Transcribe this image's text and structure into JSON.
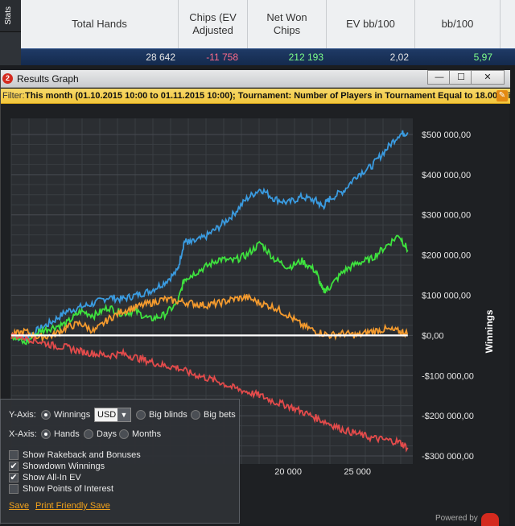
{
  "stats": {
    "tab_label": "Stats",
    "headers": [
      "Total Hands",
      "Chips (EV Adjusted",
      "Net Won Chips",
      "EV bb/100",
      "bb/100"
    ],
    "values": [
      "28 642",
      "-11 758",
      "212 193",
      "2,02",
      "5,97"
    ],
    "value_colors": [
      "#e6e6e6",
      "#ff6b8a",
      "#7dff8a",
      "#e6e6e6",
      "#7dff8a"
    ]
  },
  "window": {
    "title": "Results Graph",
    "icon_text": "2",
    "minimize_label": "—",
    "maximize_label": "☐",
    "close_label": "✕"
  },
  "filter": {
    "label": "Filter:",
    "text": "This month (01.10.2015 10:00 to 01.11.2015 10:00); Tournament: Number of Players in Tournament Equal to 18.00",
    "overflow": "Win"
  },
  "chart_data": {
    "type": "line",
    "ylabel": "Winnings",
    "xlabel": "",
    "xlim": [
      0,
      29000
    ],
    "ylim": [
      -320000,
      540000
    ],
    "y_ticks": [
      500000,
      400000,
      300000,
      200000,
      100000,
      0,
      -100000,
      -200000,
      -300000
    ],
    "y_tick_labels": [
      "$500 000,00",
      "$400 000,00",
      "$300 000,00",
      "$200 000,00",
      "$100 000,00",
      "$0,00",
      "-$100 000,00",
      "-$200 000,00",
      "-$300 000,00"
    ],
    "x_ticks": [
      20000,
      25000
    ],
    "x_tick_labels": [
      "20 000",
      "25 000"
    ],
    "grid": true,
    "series": [
      {
        "name": "",
        "color": "#3a9be0",
        "x": [
          0,
          1000,
          2000,
          3000,
          4000,
          5000,
          6000,
          7000,
          8000,
          9000,
          10000,
          11000,
          12000,
          12500,
          13000,
          14000,
          15000,
          16000,
          17000,
          18000,
          19000,
          20000,
          21000,
          22000,
          22500,
          23000,
          24000,
          25000,
          26000,
          27000,
          28000,
          28642
        ],
        "y": [
          0,
          -5000,
          15000,
          35000,
          60000,
          70000,
          80000,
          95000,
          90000,
          100000,
          110000,
          130000,
          160000,
          235000,
          230000,
          245000,
          270000,
          300000,
          340000,
          365000,
          340000,
          330000,
          345000,
          335000,
          320000,
          340000,
          360000,
          400000,
          420000,
          460000,
          500000,
          505000
        ]
      },
      {
        "name": "",
        "color": "#3ee23e",
        "x": [
          0,
          1000,
          2000,
          3000,
          4000,
          5000,
          6000,
          7000,
          8000,
          9000,
          10000,
          11000,
          12000,
          12500,
          13000,
          14000,
          15000,
          16000,
          17000,
          18000,
          19000,
          20000,
          21000,
          22000,
          22500,
          23000,
          24000,
          25000,
          26000,
          27000,
          28000,
          28642
        ],
        "y": [
          0,
          -20000,
          10000,
          20000,
          30000,
          60000,
          50000,
          70000,
          55000,
          60000,
          40000,
          50000,
          80000,
          140000,
          150000,
          170000,
          190000,
          185000,
          200000,
          230000,
          190000,
          170000,
          185000,
          160000,
          110000,
          120000,
          160000,
          180000,
          190000,
          220000,
          250000,
          212000
        ]
      },
      {
        "name": "",
        "color": "#f39a2e",
        "x": [
          0,
          1000,
          2000,
          3000,
          4000,
          5000,
          6000,
          7000,
          8000,
          9000,
          10000,
          11000,
          12000,
          13000,
          14000,
          15000,
          16000,
          17000,
          18000,
          19000,
          20000,
          21000,
          22000,
          23000,
          24000,
          25000,
          26000,
          27000,
          28000,
          28642
        ],
        "y": [
          0,
          10000,
          -5000,
          0,
          20000,
          30000,
          10000,
          40000,
          60000,
          70000,
          80000,
          90000,
          85000,
          80000,
          75000,
          80000,
          90000,
          95000,
          80000,
          70000,
          50000,
          25000,
          10000,
          0,
          5000,
          0,
          10000,
          15000,
          10000,
          5000
        ]
      },
      {
        "name": "",
        "color": "#e34b4b",
        "x": [
          0,
          1000,
          2000,
          3000,
          4000,
          5000,
          6000,
          7000,
          8000,
          9000,
          10000,
          11000,
          12000,
          13000,
          14000,
          15000,
          16000,
          17000,
          18000,
          19000,
          20000,
          21000,
          22000,
          23000,
          24000,
          25000,
          26000,
          27000,
          28000,
          28642
        ],
        "y": [
          0,
          -5000,
          -15000,
          -25000,
          -30000,
          -40000,
          -45000,
          -50000,
          -45000,
          -55000,
          -65000,
          -75000,
          -80000,
          -95000,
          -105000,
          -115000,
          -130000,
          -140000,
          -150000,
          -165000,
          -175000,
          -190000,
          -205000,
          -220000,
          -235000,
          -245000,
          -255000,
          -260000,
          -265000,
          -280000
        ]
      },
      {
        "name": "",
        "color": "#ffffff",
        "x": [
          0,
          28642
        ],
        "y": [
          0,
          0
        ]
      }
    ]
  },
  "options": {
    "y_axis_label": "Y-Axis:",
    "y_options": [
      "Winnings",
      "Big blinds",
      "Big bets"
    ],
    "y_selected": 0,
    "currency": "USD",
    "x_axis_label": "X-Axis:",
    "x_options": [
      "Hands",
      "Days",
      "Months"
    ],
    "x_selected": 0,
    "checkboxes": [
      {
        "label": "Show Rakeback and Bonuses",
        "checked": false
      },
      {
        "label": "Showdown Winnings",
        "checked": true
      },
      {
        "label": "Show All-In EV",
        "checked": true
      },
      {
        "label": "Show Points of Interest",
        "checked": false
      }
    ],
    "save_label": "Save",
    "print_save_label": "Print Friendly Save"
  },
  "footer": {
    "powered_by": "Powered by"
  }
}
